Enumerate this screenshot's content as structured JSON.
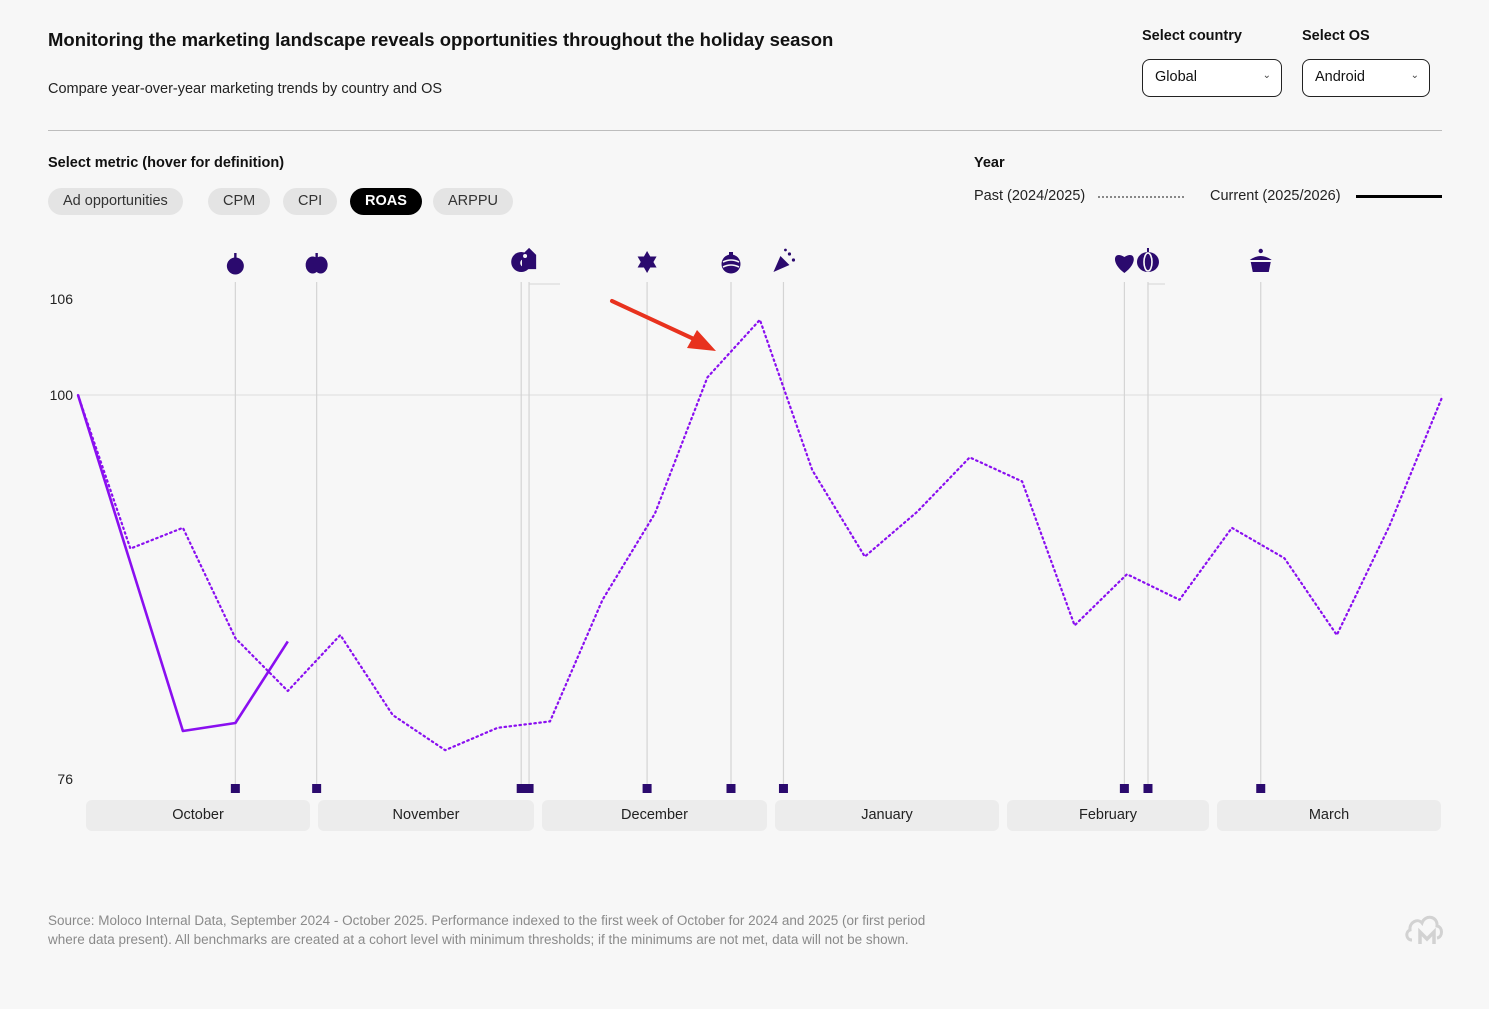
{
  "header": {
    "title": "Monitoring the marketing landscape reveals opportunities throughout the holiday season",
    "subtitle": "Compare year-over-year marketing trends by country and OS"
  },
  "filters": {
    "country_label": "Select country",
    "country_value": "Global",
    "os_label": "Select OS",
    "os_value": "Android"
  },
  "metrics": {
    "label": "Select metric (hover for definition)",
    "options": [
      "Ad opportunities",
      "CPM",
      "CPI",
      "ROAS",
      "ARPPU"
    ],
    "selected": "ROAS"
  },
  "legend": {
    "label": "Year",
    "past": "Past (2024/2025)",
    "current": "Current (2025/2026)"
  },
  "months": [
    "October",
    "November",
    "December",
    "January",
    "February",
    "March"
  ],
  "source": "Source: Moloco Internal Data, September 2024 - October 2025. Performance indexed to the first week of October for 2024 and 2025 (or first period where data present). All benchmarks are created at a cohort level with minimum thresholds; if the minimums are not met, data will not be shown.",
  "colors": {
    "series": "#8a0ff0",
    "marker": "#2b0a6e",
    "annotation_arrow": "#e8321e"
  },
  "events": [
    {
      "icon": "apple-icon",
      "week": 3
    },
    {
      "icon": "pumpkin-icon",
      "week": 4.55
    },
    {
      "icon": "turkey-icon",
      "week": 8.45
    },
    {
      "icon": "price-tag-icon",
      "week": 8.6
    },
    {
      "icon": "star-of-david-icon",
      "week": 10.85
    },
    {
      "icon": "ornament-icon",
      "week": 12.45
    },
    {
      "icon": "party-popper-icon",
      "week": 13.45
    },
    {
      "icon": "heart-icon",
      "week": 19.95
    },
    {
      "icon": "lantern-icon",
      "week": 20.4
    },
    {
      "icon": "pot-icon",
      "week": 22.55
    }
  ],
  "chart_data": {
    "type": "line",
    "title": "",
    "xlabel": "",
    "ylabel": "",
    "ylim": [
      76,
      106
    ],
    "yticks": [
      76,
      100,
      106
    ],
    "reference_line": 100,
    "x_unit": "week index from first week of October",
    "series": [
      {
        "name": "Past (2024/2025)",
        "style": "dotted",
        "x": [
          0,
          1,
          2,
          3,
          4,
          5,
          6,
          7,
          8,
          9,
          10,
          11,
          12,
          13,
          14,
          15,
          16,
          17,
          18,
          19,
          20,
          21,
          22,
          23,
          24,
          25,
          26
        ],
        "values": [
          100,
          90.4,
          91.7,
          84.8,
          81.5,
          85,
          80,
          77.8,
          79.2,
          79.6,
          87.2,
          92.6,
          101.1,
          104.7,
          95.3,
          89.9,
          92.7,
          96.1,
          94.6,
          85.6,
          88.8,
          87.2,
          91.7,
          89.8,
          85,
          91.8,
          99.8
        ]
      },
      {
        "name": "Current (2025/2026)",
        "style": "solid",
        "x": [
          0,
          2,
          3,
          4
        ],
        "values": [
          100,
          79,
          79.5,
          84.6
        ]
      }
    ]
  }
}
